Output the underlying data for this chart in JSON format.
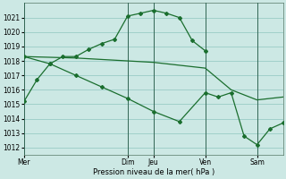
{
  "bg_color": "#cce8e4",
  "grid_color": "#99ccc6",
  "line_color": "#1a6e2e",
  "xlabel": "Pression niveau de la mer( hPa )",
  "ylim": [
    1011.5,
    1022.0
  ],
  "yticks": [
    1012,
    1013,
    1014,
    1015,
    1016,
    1017,
    1018,
    1019,
    1020,
    1021
  ],
  "day_positions": [
    0,
    48,
    60,
    84,
    108
  ],
  "day_labels": [
    "Mer",
    "Dim",
    "Jeu",
    "Ven",
    "Sam"
  ],
  "xmin": 0,
  "xmax": 120,
  "curve1_x": [
    0,
    6,
    12,
    18,
    24,
    30,
    36,
    42,
    48,
    54,
    60,
    66,
    72,
    78,
    84
  ],
  "curve1_y": [
    1015.2,
    1016.7,
    1017.8,
    1018.3,
    1018.3,
    1018.8,
    1019.2,
    1019.5,
    1021.1,
    1021.3,
    1021.5,
    1021.3,
    1021.0,
    1019.4,
    1018.7
  ],
  "curve2_x": [
    0,
    12,
    24,
    36,
    48,
    60,
    72,
    84,
    96,
    108,
    120
  ],
  "curve2_y": [
    1018.3,
    1018.25,
    1018.2,
    1018.1,
    1018.0,
    1017.9,
    1017.7,
    1017.5,
    1016.0,
    1015.3,
    1015.5
  ],
  "curve3_x": [
    0,
    12,
    24,
    36,
    48,
    60,
    72,
    84,
    90,
    96,
    102,
    108,
    114,
    120
  ],
  "curve3_y": [
    1018.3,
    1017.8,
    1017.0,
    1016.2,
    1015.4,
    1014.5,
    1013.8,
    1015.8,
    1015.5,
    1015.8,
    1012.8,
    1012.2,
    1013.3,
    1013.7
  ]
}
